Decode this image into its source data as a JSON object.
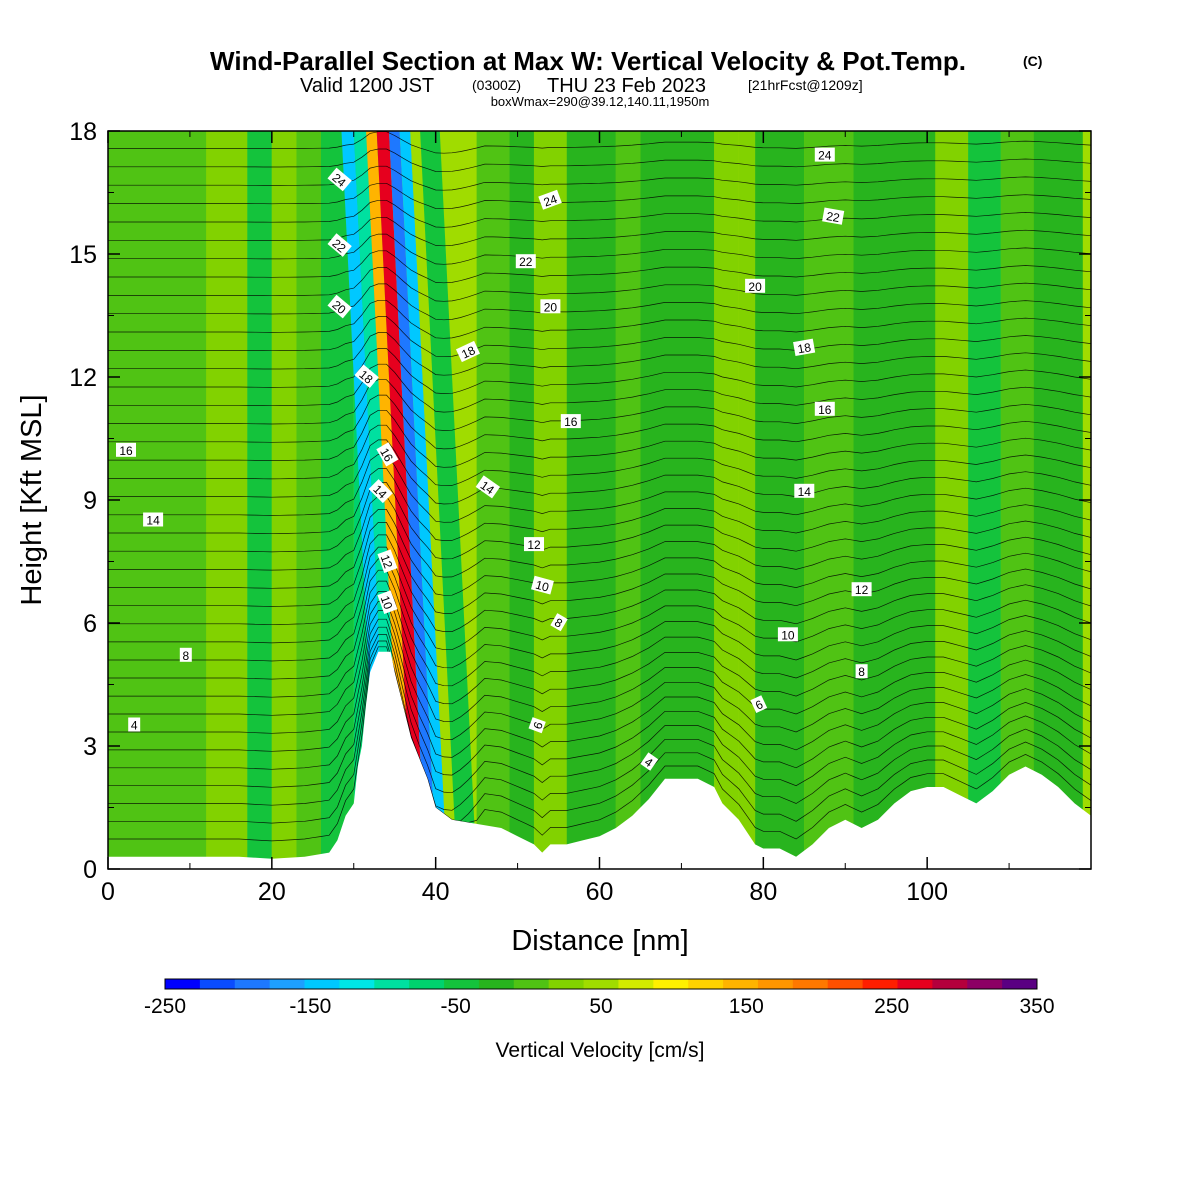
{
  "header": {
    "title_main": "Wind-Parallel Section at Max W: Vertical Velocity & Pot.Temp.",
    "title_mark": "(C)",
    "valid_a": "Valid 1200 JST",
    "valid_b": "(0300Z)",
    "valid_c": "THU 23 Feb 2023",
    "valid_d": "[21hrFcst@1209z]",
    "box_info": "boxWmax=290@39.12,140.11,1950m"
  },
  "chart_data": {
    "type": "heatmap",
    "xlabel": "Distance [nm]",
    "ylabel": "Height [Kft MSL]",
    "xlim": [
      0,
      120
    ],
    "ylim": [
      0,
      18
    ],
    "xticks": [
      "0",
      "20",
      "40",
      "60",
      "80",
      "100"
    ],
    "yticks": [
      "0",
      "3",
      "6",
      "9",
      "12",
      "15",
      "18"
    ],
    "xtick_values": [
      0,
      20,
      40,
      60,
      80,
      100
    ],
    "ytick_values": [
      0,
      3,
      6,
      9,
      12,
      15,
      18
    ],
    "colorbar": {
      "label": "Vertical Velocity [cm/s]",
      "min": -250,
      "max": 350,
      "step": 25,
      "tick_labels": [
        "-250",
        "-150",
        "-50",
        "50",
        "150",
        "250",
        "350"
      ],
      "colors": [
        "#0000ff",
        "#0a4cff",
        "#1e78ff",
        "#1ea0ff",
        "#00c8ff",
        "#00e6e6",
        "#00e0a0",
        "#00d26e",
        "#14c33c",
        "#28b41e",
        "#50c314",
        "#82d200",
        "#a0dc00",
        "#d2eb00",
        "#fff000",
        "#ffd200",
        "#ffb400",
        "#ff9600",
        "#ff7800",
        "#ff5000",
        "#ff1e00",
        "#e6001e",
        "#b4003c",
        "#8c0064",
        "#5a0082"
      ]
    },
    "series": [
      {
        "name": "Vertical Velocity",
        "bands": [
          {
            "x": 0,
            "w": 12,
            "value": 10
          },
          {
            "x": 12,
            "w": 5,
            "value": 25
          },
          {
            "x": 17,
            "w": 3,
            "value": -30
          },
          {
            "x": 20,
            "w": 3,
            "value": 35
          },
          {
            "x": 23,
            "w": 3,
            "value": 15
          },
          {
            "x": 26,
            "w": 4,
            "value": -40
          },
          {
            "x": 30,
            "w": 3,
            "value": -60
          },
          {
            "x": 33,
            "w": 1.5,
            "value": -130
          },
          {
            "x": 34.5,
            "w": 1.5,
            "value": -100
          },
          {
            "x": 36,
            "w": 1.3,
            "value": 150
          },
          {
            "x": 37.3,
            "w": 1.5,
            "value": 280
          },
          {
            "x": 38.8,
            "w": 1.3,
            "value": -200
          },
          {
            "x": 40.1,
            "w": 1.3,
            "value": -150
          },
          {
            "x": 41.4,
            "w": 1.2,
            "value": 60
          },
          {
            "x": 42.6,
            "w": 2.4,
            "value": -40
          },
          {
            "x": 45,
            "w": 4,
            "value": 20
          },
          {
            "x": 49,
            "w": 3,
            "value": -20
          },
          {
            "x": 52,
            "w": 4,
            "value": 35
          },
          {
            "x": 56,
            "w": 6,
            "value": -10
          },
          {
            "x": 62,
            "w": 3,
            "value": 10
          },
          {
            "x": 65,
            "w": 9,
            "value": -15
          },
          {
            "x": 74,
            "w": 3,
            "value": 30
          },
          {
            "x": 77,
            "w": 2,
            "value": 45
          },
          {
            "x": 79,
            "w": 6,
            "value": -20
          },
          {
            "x": 85,
            "w": 6,
            "value": 15
          },
          {
            "x": 91,
            "w": 10,
            "value": -10
          },
          {
            "x": 101,
            "w": 4,
            "value": 35
          },
          {
            "x": 105,
            "w": 4,
            "value": -30
          },
          {
            "x": 109,
            "w": 4,
            "value": 5
          },
          {
            "x": 113,
            "w": 6,
            "value": -10
          }
        ]
      },
      {
        "name": "Pot.Temp.",
        "levels": [
          4,
          6,
          8,
          10,
          12,
          14,
          16,
          18,
          20,
          22,
          24
        ],
        "labels": [
          {
            "text": "24",
            "x": 28.2,
            "y": 16.8,
            "rot": 40
          },
          {
            "text": "22",
            "x": 28.2,
            "y": 15.2,
            "rot": 40
          },
          {
            "text": "20",
            "x": 28.2,
            "y": 13.7,
            "rot": 40
          },
          {
            "text": "18",
            "x": 31.5,
            "y": 12.0,
            "rot": 40
          },
          {
            "text": "16",
            "x": 34.0,
            "y": 10.1,
            "rot": 60
          },
          {
            "text": "14",
            "x": 33.2,
            "y": 9.2,
            "rot": 45
          },
          {
            "text": "12",
            "x": 34.0,
            "y": 7.5,
            "rot": 70
          },
          {
            "text": "10",
            "x": 34.0,
            "y": 6.5,
            "rot": 70
          },
          {
            "text": "18",
            "x": 44.0,
            "y": 12.6,
            "rot": -25
          },
          {
            "text": "14",
            "x": 46.3,
            "y": 9.3,
            "rot": 35
          },
          {
            "text": "24",
            "x": 54.0,
            "y": 16.3,
            "rot": -20
          },
          {
            "text": "22",
            "x": 51.0,
            "y": 14.8,
            "rot": 0
          },
          {
            "text": "20",
            "x": 54.0,
            "y": 13.7,
            "rot": 0
          },
          {
            "text": "16",
            "x": 56.5,
            "y": 10.9,
            "rot": 0
          },
          {
            "text": "12",
            "x": 52.0,
            "y": 7.9,
            "rot": 0
          },
          {
            "text": "10",
            "x": 53.0,
            "y": 6.9,
            "rot": 15
          },
          {
            "text": "8",
            "x": 55.0,
            "y": 6.0,
            "rot": 30
          },
          {
            "text": "6",
            "x": 52.5,
            "y": 3.5,
            "rot": -70
          },
          {
            "text": "4",
            "x": 66.0,
            "y": 2.6,
            "rot": 35
          },
          {
            "text": "24",
            "x": 87.5,
            "y": 17.4,
            "rot": 0
          },
          {
            "text": "22",
            "x": 88.5,
            "y": 15.9,
            "rot": 10
          },
          {
            "text": "20",
            "x": 79.0,
            "y": 14.2,
            "rot": 0
          },
          {
            "text": "18",
            "x": 85.0,
            "y": 12.7,
            "rot": -10
          },
          {
            "text": "16",
            "x": 87.5,
            "y": 11.2,
            "rot": 0
          },
          {
            "text": "14",
            "x": 85.0,
            "y": 9.2,
            "rot": 0
          },
          {
            "text": "12",
            "x": 92.0,
            "y": 6.8,
            "rot": 0
          },
          {
            "text": "10",
            "x": 83.0,
            "y": 5.7,
            "rot": 0
          },
          {
            "text": "8",
            "x": 92.0,
            "y": 4.8,
            "rot": 0
          },
          {
            "text": "6",
            "x": 79.5,
            "y": 4.0,
            "rot": -25
          },
          {
            "text": "16",
            "x": 2.2,
            "y": 10.2,
            "rot": 0
          },
          {
            "text": "14",
            "x": 5.5,
            "y": 8.5,
            "rot": 0
          },
          {
            "text": "8",
            "x": 9.5,
            "y": 5.2,
            "rot": 0
          },
          {
            "text": "4",
            "x": 3.2,
            "y": 3.5,
            "rot": 0
          }
        ]
      }
    ],
    "terrain": [
      [
        0,
        0.3
      ],
      [
        10,
        0.3
      ],
      [
        16,
        0.3
      ],
      [
        20,
        0.25
      ],
      [
        24,
        0.3
      ],
      [
        27,
        0.4
      ],
      [
        28,
        0.7
      ],
      [
        29,
        1.3
      ],
      [
        30,
        1.6
      ],
      [
        30.5,
        2.5
      ],
      [
        31,
        3.0
      ],
      [
        31.5,
        4.0
      ],
      [
        32,
        4.8
      ],
      [
        33,
        5.3
      ],
      [
        34.5,
        5.3
      ],
      [
        35,
        4.8
      ],
      [
        36,
        4.0
      ],
      [
        37,
        3.2
      ],
      [
        38,
        2.7
      ],
      [
        39,
        2.2
      ],
      [
        40,
        1.5
      ],
      [
        42,
        1.2
      ],
      [
        45,
        1.1
      ],
      [
        48,
        1.0
      ],
      [
        50,
        0.8
      ],
      [
        52,
        0.6
      ],
      [
        53,
        0.4
      ],
      [
        54,
        0.6
      ],
      [
        56,
        0.6
      ],
      [
        58,
        0.7
      ],
      [
        60,
        0.8
      ],
      [
        62,
        1.0
      ],
      [
        64,
        1.3
      ],
      [
        66,
        1.7
      ],
      [
        68,
        2.2
      ],
      [
        70,
        2.2
      ],
      [
        72,
        2.2
      ],
      [
        74,
        2.0
      ],
      [
        75,
        1.6
      ],
      [
        77,
        1.2
      ],
      [
        78,
        0.9
      ],
      [
        79,
        0.6
      ],
      [
        80,
        0.5
      ],
      [
        82,
        0.5
      ],
      [
        84,
        0.3
      ],
      [
        86,
        0.6
      ],
      [
        88,
        1.0
      ],
      [
        90,
        1.2
      ],
      [
        92,
        1.0
      ],
      [
        94,
        1.2
      ],
      [
        96,
        1.6
      ],
      [
        98,
        1.9
      ],
      [
        100,
        2.0
      ],
      [
        102,
        2.0
      ],
      [
        104,
        1.8
      ],
      [
        106,
        1.6
      ],
      [
        108,
        1.9
      ],
      [
        110,
        2.3
      ],
      [
        112,
        2.5
      ],
      [
        114,
        2.3
      ],
      [
        116,
        2.0
      ],
      [
        118,
        1.6
      ],
      [
        120,
        1.3
      ]
    ]
  }
}
